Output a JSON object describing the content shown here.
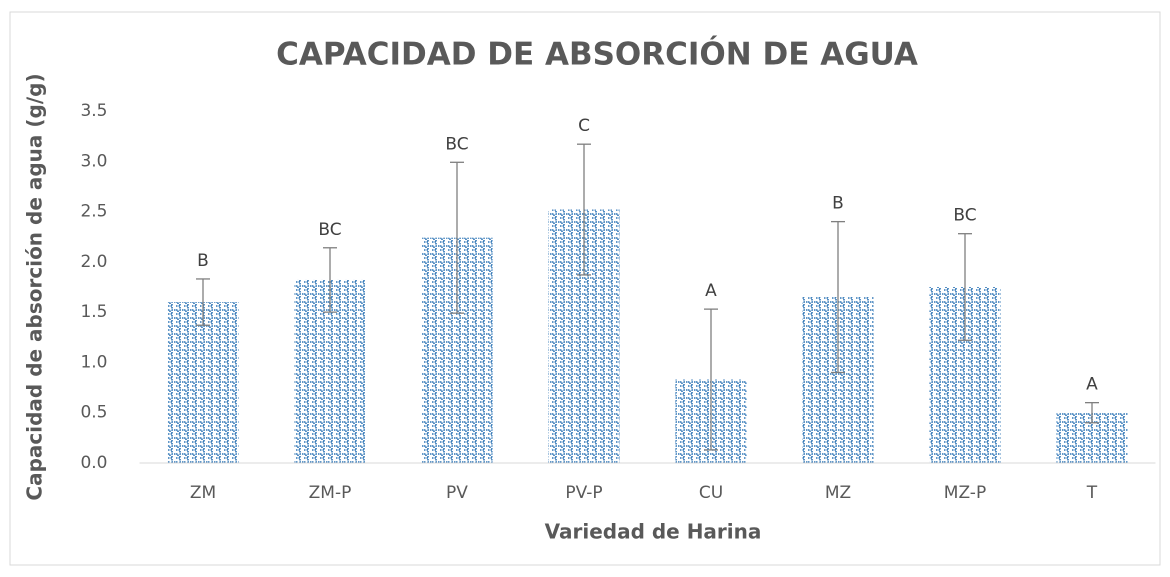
{
  "chart_data": {
    "type": "bar",
    "title": "CAPACIDAD DE ABSORCIÓN DE AGUA",
    "x_label": "Variedad de Harina",
    "y_label": "Capacidad de absorción de agua (g/g)",
    "categories": [
      "ZM",
      "ZM-P",
      "PV",
      "PV-P",
      "CU",
      "MZ",
      "MZ-P",
      "T"
    ],
    "values": [
      1.6,
      1.82,
      2.24,
      2.52,
      0.83,
      1.65,
      1.75,
      0.5
    ],
    "errors": [
      0.23,
      0.32,
      0.75,
      0.65,
      0.7,
      0.75,
      0.53,
      0.1
    ],
    "annotations": [
      "B",
      "BC",
      "BC",
      "C",
      "A",
      "B",
      "BC",
      "A"
    ],
    "color": "#2e75b6",
    "ylim": [
      0,
      3.5
    ],
    "yticks": [
      {
        "value": 0,
        "label": "0.0"
      },
      {
        "value": 0.5,
        "label": "0.5"
      },
      {
        "value": 1,
        "label": "1.0"
      },
      {
        "value": 1.5,
        "label": "1.5"
      },
      {
        "value": 2,
        "label": "2.0"
      },
      {
        "value": 2.5,
        "label": "2.5"
      },
      {
        "value": 3,
        "label": "3.0"
      },
      {
        "value": 3.5,
        "label": "3.5"
      }
    ],
    "grid": false
  }
}
